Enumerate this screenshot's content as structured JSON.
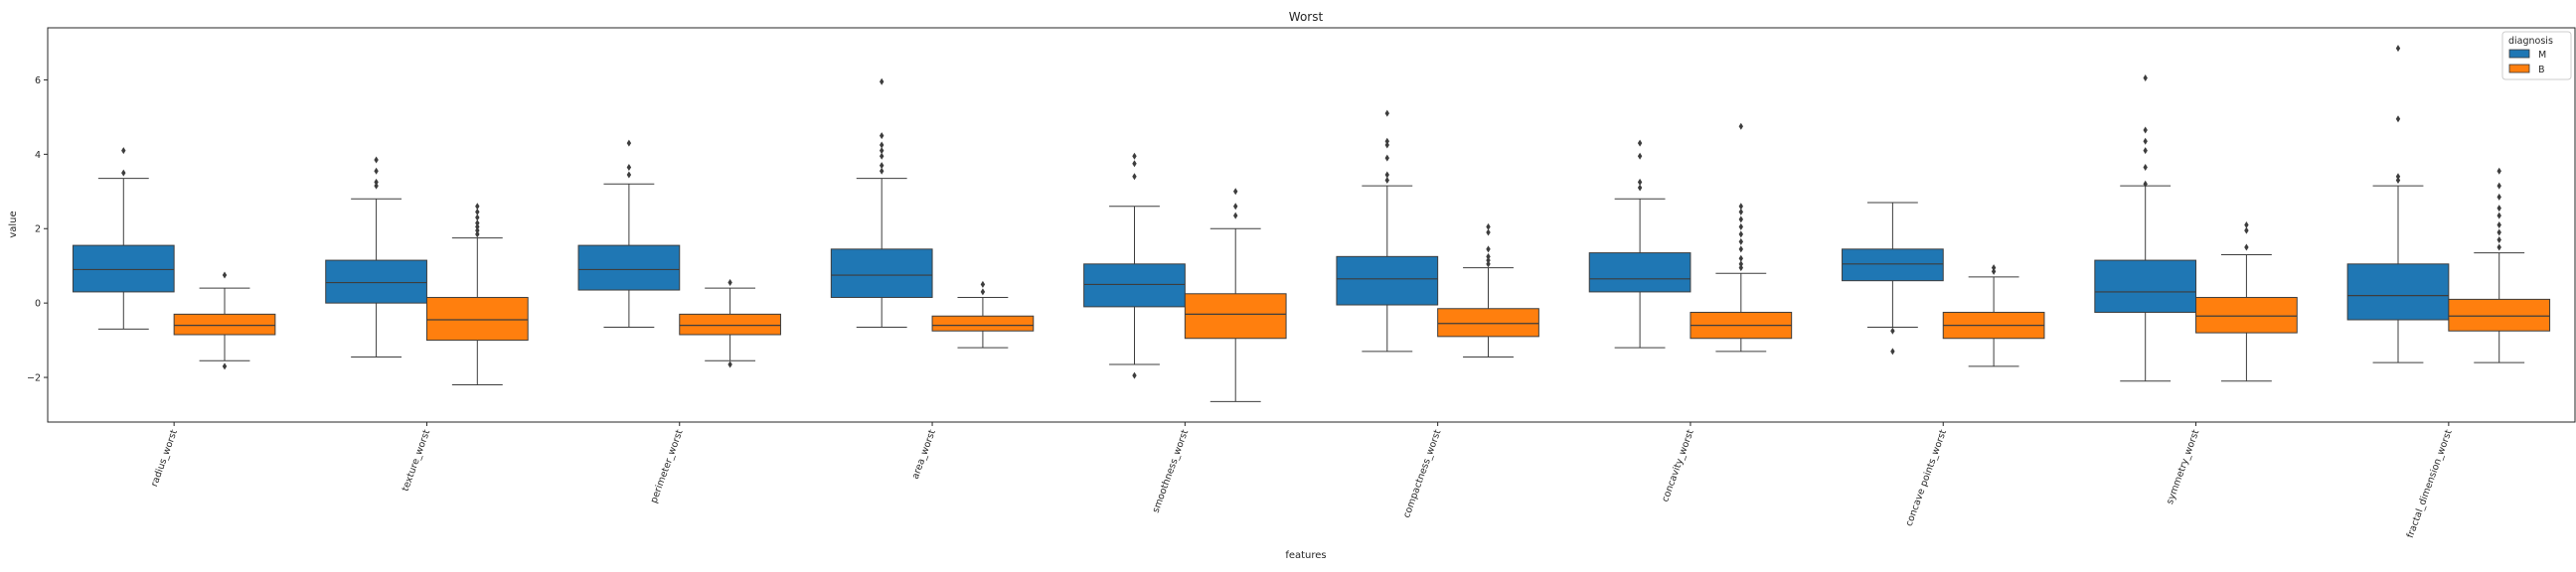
{
  "chart_data": {
    "type": "box",
    "title": "Worst",
    "xlabel": "features",
    "ylabel": "value",
    "ylim": [
      -3.2,
      7.4
    ],
    "yticks": [
      -2,
      0,
      2,
      4,
      6
    ],
    "legend": {
      "title": "diagnosis",
      "placement": "top-right"
    },
    "categories": [
      "radius_worst",
      "texture_worst",
      "perimeter_worst",
      "area_worst",
      "smoothness_worst",
      "compactness_worst",
      "concavity_worst",
      "concave points_worst",
      "symmetry_worst",
      "fractal_dimension_worst"
    ],
    "series": [
      {
        "name": "M",
        "color": "#1f77b4",
        "boxes": [
          {
            "whislo": -0.7,
            "q1": 0.3,
            "med": 0.9,
            "q3": 1.55,
            "whishi": 3.35,
            "fliers": [
              3.5,
              4.1
            ]
          },
          {
            "whislo": -1.45,
            "q1": 0.0,
            "med": 0.55,
            "q3": 1.15,
            "whishi": 2.8,
            "fliers": [
              3.15,
              3.25,
              3.55,
              3.85
            ]
          },
          {
            "whislo": -0.65,
            "q1": 0.35,
            "med": 0.9,
            "q3": 1.55,
            "whishi": 3.2,
            "fliers": [
              3.45,
              3.65,
              4.3
            ]
          },
          {
            "whislo": -0.65,
            "q1": 0.15,
            "med": 0.75,
            "q3": 1.45,
            "whishi": 3.35,
            "fliers": [
              3.55,
              3.7,
              3.95,
              4.1,
              4.25,
              4.5,
              5.95
            ]
          },
          {
            "whislo": -1.65,
            "q1": -0.1,
            "med": 0.5,
            "q3": 1.05,
            "whishi": 2.6,
            "fliers": [
              -1.95,
              3.4,
              3.75,
              3.95
            ]
          },
          {
            "whislo": -1.3,
            "q1": -0.05,
            "med": 0.65,
            "q3": 1.25,
            "whishi": 3.15,
            "fliers": [
              3.3,
              3.45,
              3.9,
              4.25,
              4.35,
              5.1
            ]
          },
          {
            "whislo": -1.2,
            "q1": 0.3,
            "med": 0.65,
            "q3": 1.35,
            "whishi": 2.8,
            "fliers": [
              3.1,
              3.25,
              3.95,
              4.3
            ]
          },
          {
            "whislo": -0.65,
            "q1": 0.6,
            "med": 1.05,
            "q3": 1.45,
            "whishi": 2.7,
            "fliers": [
              -0.75,
              -1.3
            ]
          },
          {
            "whislo": -2.1,
            "q1": -0.25,
            "med": 0.3,
            "q3": 1.15,
            "whishi": 3.15,
            "fliers": [
              3.2,
              3.65,
              4.1,
              4.35,
              4.65,
              6.05
            ]
          },
          {
            "whislo": -1.6,
            "q1": -0.45,
            "med": 0.2,
            "q3": 1.05,
            "whishi": 3.15,
            "fliers": [
              3.3,
              3.4,
              4.95,
              6.85
            ]
          }
        ]
      },
      {
        "name": "B",
        "color": "#ff7f0e",
        "boxes": [
          {
            "whislo": -1.55,
            "q1": -0.85,
            "med": -0.6,
            "q3": -0.3,
            "whishi": 0.4,
            "fliers": [
              0.75,
              -1.7
            ]
          },
          {
            "whislo": -2.2,
            "q1": -1.0,
            "med": -0.45,
            "q3": 0.15,
            "whishi": 1.75,
            "fliers": [
              1.85,
              1.95,
              2.05,
              2.15,
              2.3,
              2.45,
              2.6
            ]
          },
          {
            "whislo": -1.55,
            "q1": -0.85,
            "med": -0.6,
            "q3": -0.3,
            "whishi": 0.4,
            "fliers": [
              0.55,
              -1.65
            ]
          },
          {
            "whislo": -1.2,
            "q1": -0.75,
            "med": -0.6,
            "q3": -0.35,
            "whishi": 0.15,
            "fliers": [
              0.3,
              0.5
            ]
          },
          {
            "whislo": -2.65,
            "q1": -0.95,
            "med": -0.3,
            "q3": 0.25,
            "whishi": 2.0,
            "fliers": [
              2.35,
              2.6,
              3.0
            ]
          },
          {
            "whislo": -1.45,
            "q1": -0.9,
            "med": -0.55,
            "q3": -0.15,
            "whishi": 0.95,
            "fliers": [
              1.05,
              1.15,
              1.25,
              1.45,
              1.9,
              2.05
            ]
          },
          {
            "whislo": -1.3,
            "q1": -0.95,
            "med": -0.6,
            "q3": -0.25,
            "whishi": 0.8,
            "fliers": [
              0.95,
              1.05,
              1.2,
              1.45,
              1.65,
              1.85,
              2.05,
              2.25,
              2.45,
              2.6,
              4.75
            ]
          },
          {
            "whislo": -1.7,
            "q1": -0.95,
            "med": -0.6,
            "q3": -0.25,
            "whishi": 0.7,
            "fliers": [
              0.85,
              0.95
            ]
          },
          {
            "whislo": -2.1,
            "q1": -0.8,
            "med": -0.35,
            "q3": 0.15,
            "whishi": 1.3,
            "fliers": [
              1.5,
              1.95,
              2.1
            ]
          },
          {
            "whislo": -1.6,
            "q1": -0.75,
            "med": -0.35,
            "q3": 0.1,
            "whishi": 1.35,
            "fliers": [
              1.5,
              1.7,
              1.9,
              2.1,
              2.35,
              2.55,
              2.85,
              3.15,
              3.55
            ]
          }
        ]
      }
    ]
  }
}
